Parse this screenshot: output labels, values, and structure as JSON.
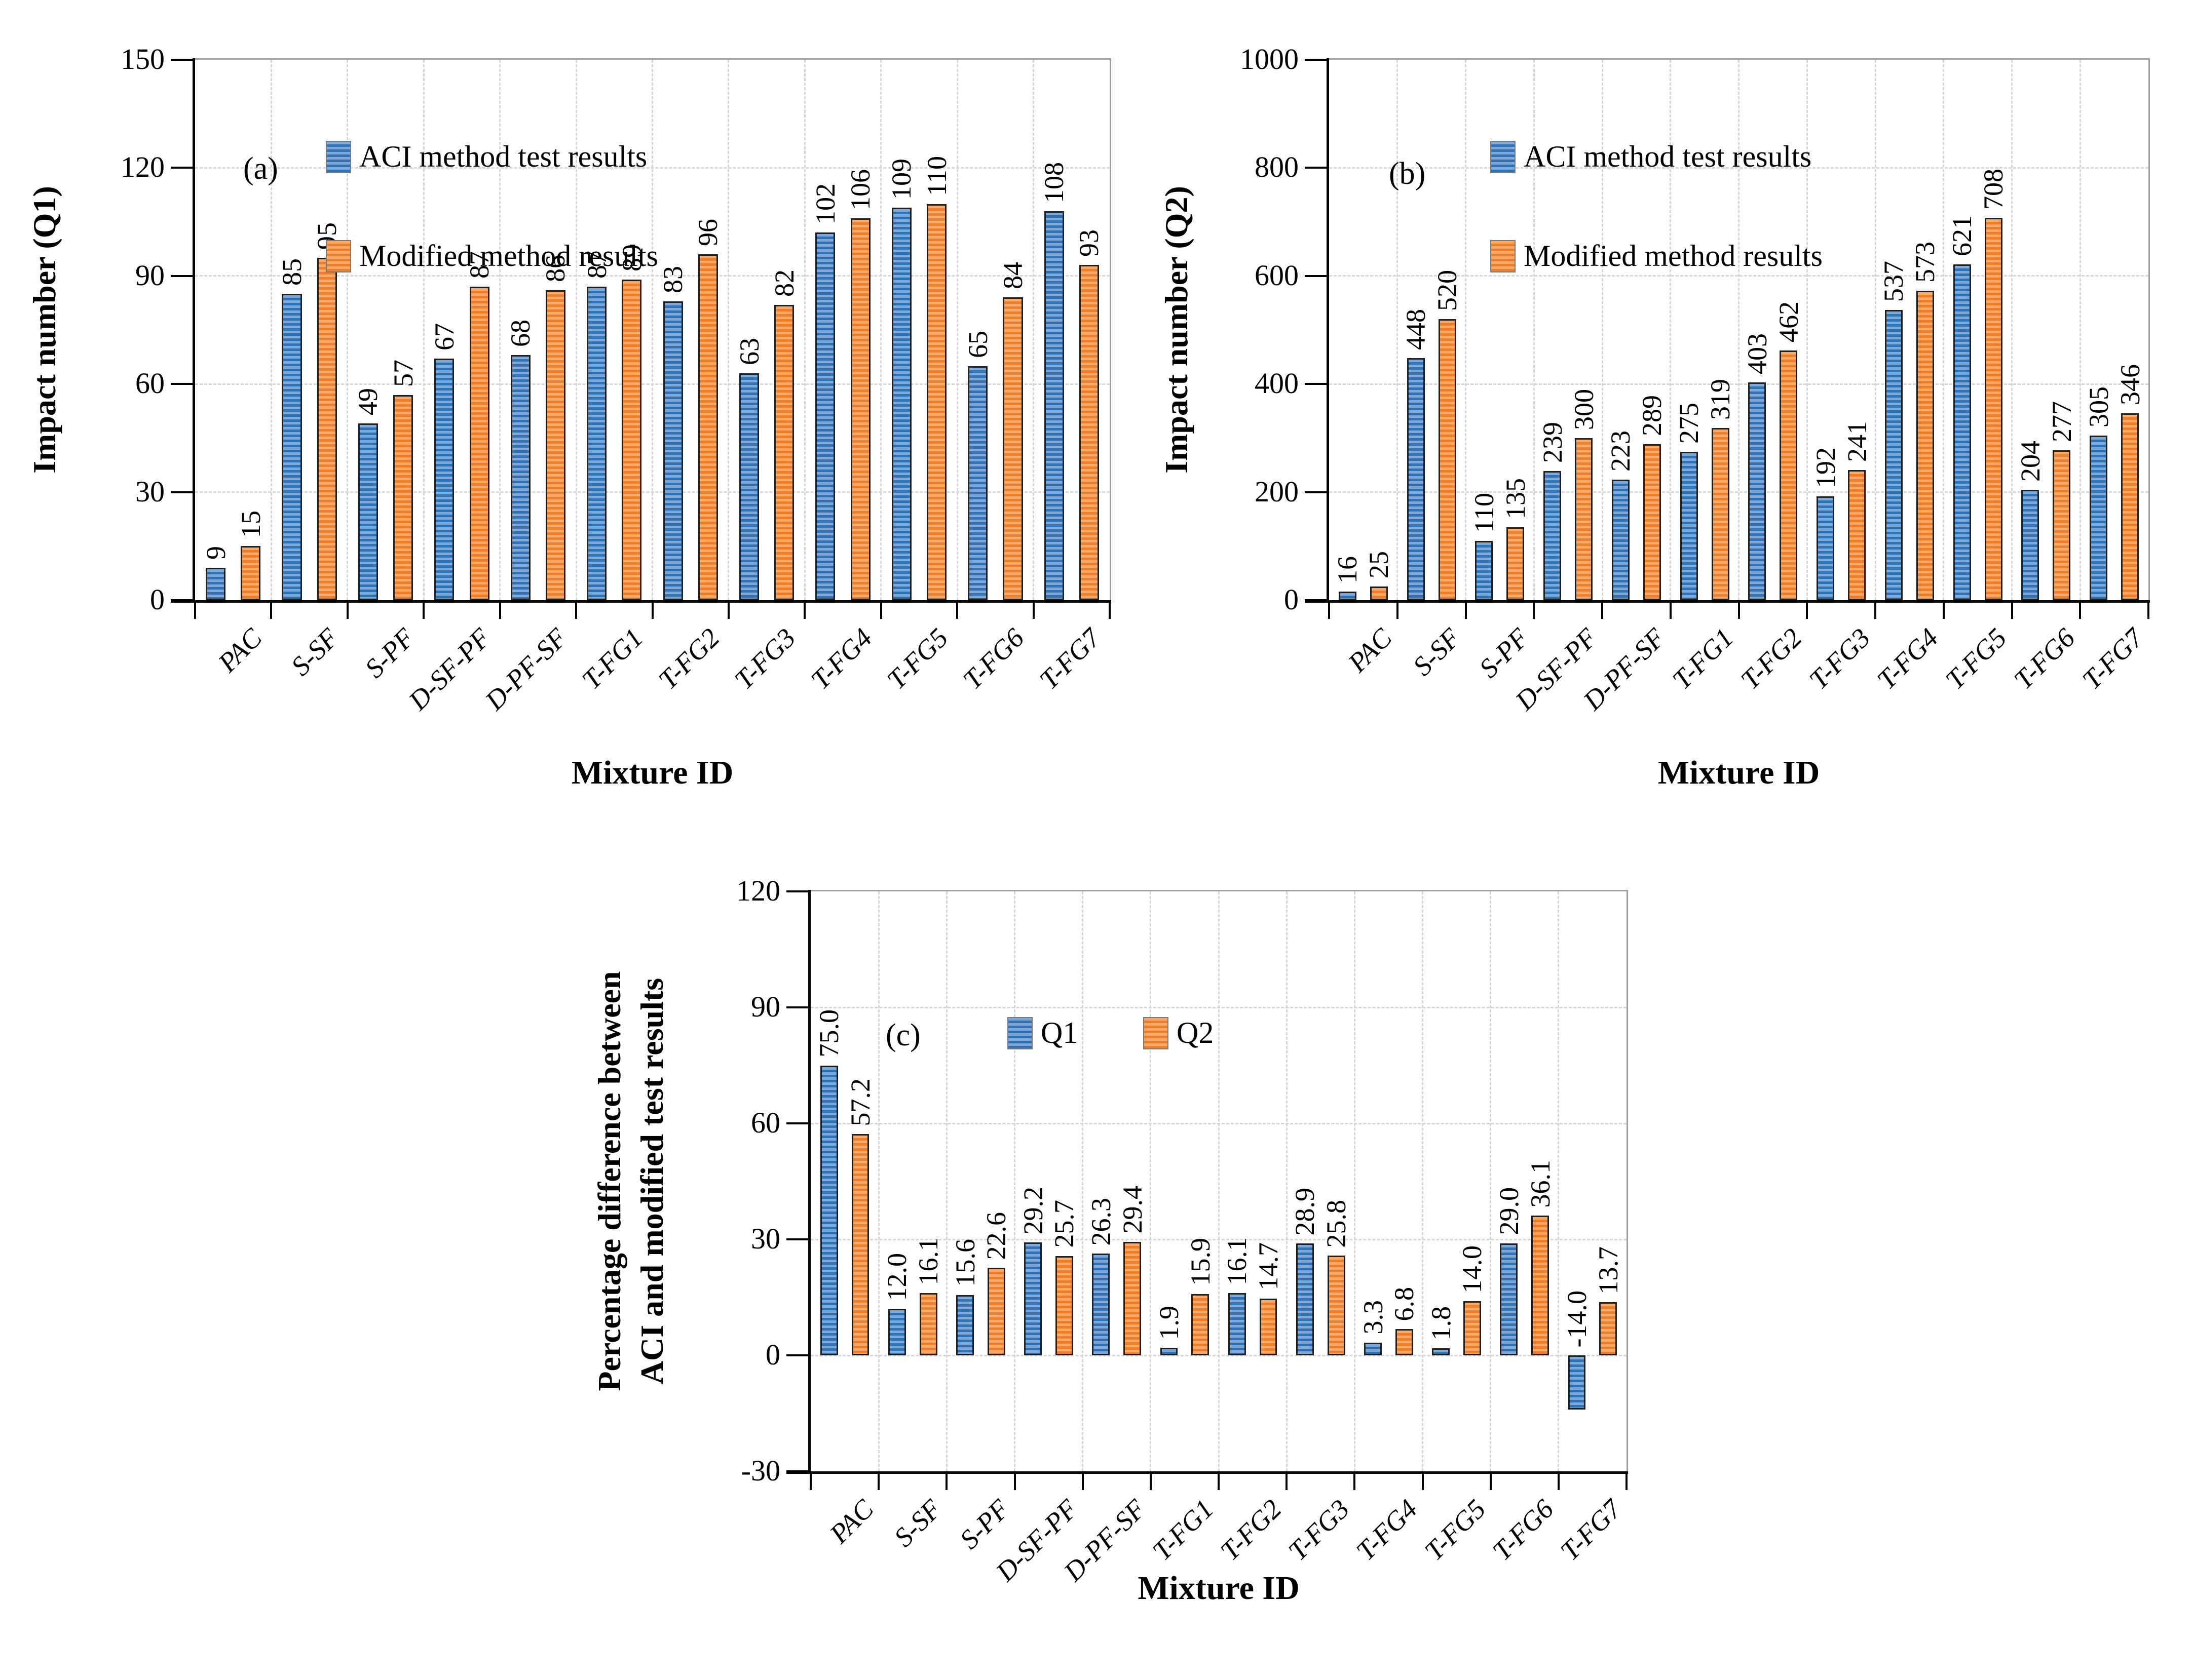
{
  "colors": {
    "bar_blue_light": "#7FA8DB",
    "bar_blue_dark": "#2E74B5",
    "bar_orange_light": "#FAAA68",
    "bar_orange_dark": "#F07D28",
    "bar_outline": "#1F1F1F",
    "grid": "#D6D6D6",
    "plot_border": "#A0A0A0",
    "axis": "#000000"
  },
  "chart_data": [
    {
      "id": "a",
      "type": "bar",
      "panel_label": "(a)",
      "xlabel": "Mixture ID",
      "ylabel": "Impact number (Q1)",
      "ylabel_lines": [
        "Impact number (Q1)"
      ],
      "ylim": [
        0,
        150
      ],
      "ystep": 30,
      "grid": true,
      "legend_position": "top-inside",
      "legend_layout": "stacked",
      "value_label_decimals": 0,
      "categories": [
        "PAC",
        "S-SF",
        "S-PF",
        "D-SF-PF",
        "D-PF-SF",
        "T-FG1",
        "T-FG2",
        "T-FG3",
        "T-FG4",
        "T-FG5",
        "T-FG6",
        "T-FG7"
      ],
      "series": [
        {
          "name": "ACI method test results",
          "color": "blue",
          "values": [
            9,
            85,
            49,
            67,
            68,
            87,
            83,
            63,
            102,
            109,
            65,
            108
          ]
        },
        {
          "name": "Modified method results",
          "color": "orange",
          "values": [
            15,
            95,
            57,
            87,
            86,
            89,
            96,
            82,
            106,
            110,
            84,
            93
          ]
        }
      ]
    },
    {
      "id": "b",
      "type": "bar",
      "panel_label": "(b)",
      "xlabel": "Mixture ID",
      "ylabel": "Impact number (Q2)",
      "ylabel_lines": [
        "Impact number (Q2)"
      ],
      "ylim": [
        0,
        1000
      ],
      "ystep": 200,
      "grid": true,
      "legend_position": "top-inside",
      "legend_layout": "stacked",
      "value_label_decimals": 0,
      "categories": [
        "PAC",
        "S-SF",
        "S-PF",
        "D-SF-PF",
        "D-PF-SF",
        "T-FG1",
        "T-FG2",
        "T-FG3",
        "T-FG4",
        "T-FG5",
        "T-FG6",
        "T-FG7"
      ],
      "series": [
        {
          "name": "ACI method test results",
          "color": "blue",
          "values": [
            16,
            448,
            110,
            239,
            223,
            275,
            403,
            192,
            537,
            621,
            204,
            305
          ]
        },
        {
          "name": "Modified method results",
          "color": "orange",
          "values": [
            25,
            520,
            135,
            300,
            289,
            319,
            462,
            241,
            573,
            708,
            277,
            346
          ]
        }
      ]
    },
    {
      "id": "c",
      "type": "bar",
      "panel_label": "(c)",
      "xlabel": "Mixture ID",
      "ylabel": "Percentage difference between ACI and modified test results",
      "ylabel_lines": [
        "Percentage difference between",
        "ACI and modified test results"
      ],
      "ylim": [
        -30,
        120
      ],
      "ystep": 30,
      "grid": true,
      "legend_position": "top-inside",
      "legend_layout": "row",
      "value_label_decimals": 1,
      "categories": [
        "PAC",
        "S-SF",
        "S-PF",
        "D-SF-PF",
        "D-PF-SF",
        "T-FG1",
        "T-FG2",
        "T-FG3",
        "T-FG4",
        "T-FG5",
        "T-FG6",
        "T-FG7"
      ],
      "series": [
        {
          "name": "Q1",
          "color": "blue",
          "values": [
            75.0,
            12.0,
            15.6,
            29.2,
            26.3,
            1.9,
            16.1,
            28.9,
            3.3,
            1.8,
            29.0,
            -14.0
          ]
        },
        {
          "name": "Q2",
          "color": "orange",
          "values": [
            57.2,
            16.1,
            22.6,
            25.7,
            29.4,
            15.9,
            14.7,
            25.8,
            6.8,
            14.0,
            36.1,
            13.7
          ]
        }
      ]
    }
  ]
}
